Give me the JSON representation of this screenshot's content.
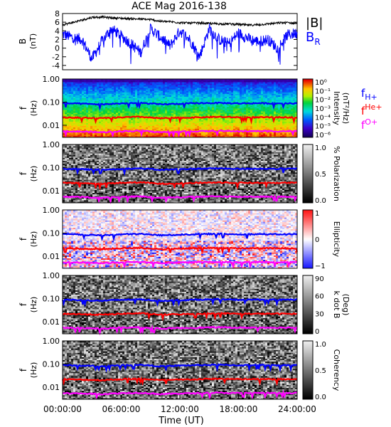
{
  "chart_data": [
    {
      "type": "line",
      "title": "ACE Mag 2016-138",
      "ylabel": "B",
      "yunit": "(nT)",
      "ylim": [
        -5,
        8
      ],
      "yticks": [
        -4,
        -2,
        0,
        2,
        4,
        6,
        8
      ],
      "x_hours": [
        0,
        1,
        2,
        3,
        4,
        5,
        6,
        7,
        8,
        9,
        10,
        11,
        12,
        13,
        14,
        15,
        16,
        17,
        18,
        19,
        20,
        21,
        22,
        23,
        24
      ],
      "series": [
        {
          "name": "|B|",
          "color": "#000000",
          "values": [
            5.4,
            5.9,
            6.5,
            7.1,
            7.2,
            7.0,
            6.9,
            6.8,
            6.7,
            6.6,
            6.2,
            6.1,
            5.9,
            5.8,
            5.8,
            5.7,
            5.6,
            5.6,
            5.5,
            5.3,
            5.4,
            5.6,
            5.8,
            5.9,
            5.7
          ]
        },
        {
          "name": "B",
          "subscript": "R",
          "color": "#0000ff",
          "values": [
            3.2,
            2.5,
            2.0,
            -2.5,
            1.5,
            4.5,
            2.8,
            1.0,
            -1.0,
            4.5,
            2.5,
            0.5,
            4.0,
            2.0,
            -2.0,
            4.5,
            2.0,
            1.0,
            3.5,
            2.2,
            1.5,
            2.0,
            0.0,
            3.0,
            3.5
          ]
        }
      ]
    },
    {
      "type": "heatmap",
      "ylabel": "f",
      "yunit": "(Hz)",
      "yscale": "log",
      "ylim": [
        0.003,
        1.0
      ],
      "yticks": [
        "1.00",
        "0.10",
        "0.01"
      ],
      "colorbar": {
        "label": "Intensity",
        "unit": "(nT²/Hz)",
        "scale": "log",
        "ticks": [
          "10⁰",
          "10⁻¹",
          "10⁻²",
          "10⁻³",
          "10⁻⁴",
          "10⁻⁵",
          "10⁻⁶"
        ],
        "colormap": "rainbow"
      },
      "legend": [
        {
          "text": "f",
          "sub": "H+",
          "color": "#0000ff"
        },
        {
          "text": "f",
          "sub": "He+",
          "color": "#ff0000"
        },
        {
          "text": "f",
          "sub": "O+",
          "color": "#ff00ff"
        }
      ]
    },
    {
      "type": "heatmap",
      "ylabel": "f",
      "yunit": "(Hz)",
      "yscale": "log",
      "ylim": [
        0.003,
        1.0
      ],
      "yticks": [
        "1.00",
        "0.10",
        "0.01"
      ],
      "colorbar": {
        "label": "% Polarization",
        "ticks": [
          "1.0",
          "0.5",
          "0.0"
        ],
        "colormap": "gray"
      }
    },
    {
      "type": "heatmap",
      "ylabel": "f",
      "yunit": "(Hz)",
      "yscale": "log",
      "ylim": [
        0.003,
        1.0
      ],
      "yticks": [
        "1.00",
        "0.10",
        "0.01"
      ],
      "colorbar": {
        "label": "Ellipticity",
        "ticks": [
          "1",
          "0",
          "−1"
        ],
        "colormap": "bwr"
      }
    },
    {
      "type": "heatmap",
      "ylabel": "f",
      "yunit": "(Hz)",
      "yscale": "log",
      "ylim": [
        0.003,
        1.0
      ],
      "yticks": [
        "1.00",
        "0.10",
        "0.01"
      ],
      "colorbar": {
        "label": "k dot B",
        "unit": "(Deg)",
        "ticks": [
          "90",
          "60",
          "30",
          "0"
        ],
        "colormap": "gray"
      }
    },
    {
      "type": "heatmap",
      "ylabel": "f",
      "yunit": "(Hz)",
      "yscale": "log",
      "ylim": [
        0.003,
        1.0
      ],
      "yticks": [
        "1.00",
        "0.10",
        "0.01"
      ],
      "colorbar": {
        "label": "Coherency",
        "ticks": [
          "1.0",
          "0.5",
          "0.0"
        ],
        "colormap": "gray"
      }
    }
  ],
  "gyro_lines": {
    "x_hours": [
      0,
      2,
      4,
      6,
      8,
      10,
      12,
      14,
      16,
      18,
      20,
      22,
      24
    ],
    "H+": [
      0.09,
      0.085,
      0.08,
      0.088,
      0.092,
      0.08,
      0.085,
      0.09,
      0.092,
      0.088,
      0.09,
      0.088,
      0.09
    ],
    "He+": [
      0.022,
      0.021,
      0.02,
      0.022,
      0.023,
      0.02,
      0.021,
      0.022,
      0.023,
      0.022,
      0.022,
      0.022,
      0.022
    ],
    "O+": [
      0.0055,
      0.0053,
      0.005,
      0.0055,
      0.0057,
      0.005,
      0.0053,
      0.0055,
      0.0057,
      0.0055,
      0.0056,
      0.0055,
      0.0056
    ]
  },
  "xaxis": {
    "label": "Time (UT)",
    "ticks": [
      "00:00:00",
      "06:00:00",
      "12:00:00",
      "18:00:00",
      "24:00:00"
    ]
  }
}
